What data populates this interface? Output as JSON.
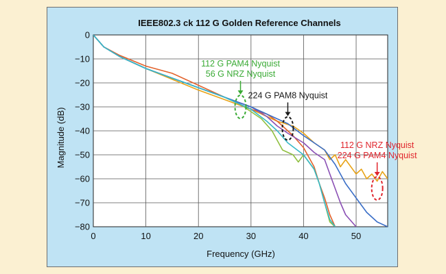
{
  "chart_data": {
    "type": "line",
    "title": "IEEE802.3 ck 112 G Golden Reference Channels",
    "xlabel": "Frequency (GHz)",
    "ylabel": "Magnitude (dB)",
    "xlim": [
      0,
      56
    ],
    "ylim": [
      -80,
      0
    ],
    "x_ticks": [
      "0",
      "10",
      "20",
      "30",
      "40",
      "50"
    ],
    "y_ticks": [
      "0",
      "−10",
      "−20",
      "−30",
      "−40",
      "−50",
      "−60",
      "−70",
      "−80"
    ],
    "grid": true,
    "series": [
      {
        "color": "#e8a317",
        "points": [
          [
            0,
            0
          ],
          [
            2,
            -5
          ],
          [
            5,
            -9
          ],
          [
            10,
            -14
          ],
          [
            15,
            -18.5
          ],
          [
            20,
            -23
          ],
          [
            25,
            -27
          ],
          [
            30,
            -31
          ],
          [
            35,
            -36
          ],
          [
            38,
            -38
          ],
          [
            40,
            -41
          ],
          [
            42,
            -45
          ],
          [
            44,
            -48
          ],
          [
            45,
            -52
          ],
          [
            46,
            -50
          ],
          [
            47,
            -55
          ],
          [
            48,
            -52
          ],
          [
            50,
            -58
          ],
          [
            51,
            -56
          ],
          [
            52,
            -60
          ],
          [
            53,
            -58
          ],
          [
            54,
            -61
          ],
          [
            55,
            -57
          ],
          [
            56,
            -60
          ]
        ]
      },
      {
        "color": "#e2622c",
        "points": [
          [
            0,
            0
          ],
          [
            2,
            -5
          ],
          [
            5,
            -8.5
          ],
          [
            10,
            -13
          ],
          [
            15,
            -16
          ],
          [
            20,
            -21
          ],
          [
            25,
            -26
          ],
          [
            30,
            -31
          ],
          [
            33,
            -33
          ],
          [
            35,
            -36
          ],
          [
            36,
            -38
          ],
          [
            37,
            -40
          ],
          [
            38,
            -42
          ],
          [
            40,
            -47
          ],
          [
            42,
            -55
          ],
          [
            43,
            -62
          ],
          [
            44,
            -68
          ],
          [
            45,
            -75
          ],
          [
            46,
            -80
          ]
        ]
      },
      {
        "color": "#8fbf3f",
        "points": [
          [
            0,
            0
          ],
          [
            2,
            -5
          ],
          [
            5,
            -9
          ],
          [
            10,
            -14
          ],
          [
            15,
            -18
          ],
          [
            20,
            -22
          ],
          [
            25,
            -26
          ],
          [
            28,
            -29
          ],
          [
            30,
            -32
          ],
          [
            32,
            -35
          ],
          [
            34,
            -40
          ],
          [
            35,
            -44
          ],
          [
            36,
            -48
          ],
          [
            38,
            -50
          ],
          [
            39,
            -53
          ],
          [
            40,
            -50
          ],
          [
            41,
            -53
          ],
          [
            42,
            -56
          ],
          [
            43,
            -62
          ],
          [
            44,
            -70
          ],
          [
            45,
            -78
          ],
          [
            46,
            -80
          ]
        ]
      },
      {
        "color": "#8a4fb4",
        "points": [
          [
            0,
            0
          ],
          [
            2,
            -5
          ],
          [
            5,
            -9
          ],
          [
            10,
            -14
          ],
          [
            15,
            -18
          ],
          [
            20,
            -22
          ],
          [
            25,
            -26
          ],
          [
            30,
            -30
          ],
          [
            33,
            -34
          ],
          [
            35,
            -38
          ],
          [
            37,
            -41
          ],
          [
            40,
            -45
          ],
          [
            42,
            -49
          ],
          [
            44,
            -52
          ],
          [
            45,
            -58
          ],
          [
            46,
            -64
          ],
          [
            47,
            -70
          ],
          [
            48,
            -75
          ],
          [
            50,
            -80
          ]
        ]
      },
      {
        "color": "#3a6ec7",
        "points": [
          [
            0,
            0
          ],
          [
            2,
            -5
          ],
          [
            5,
            -9
          ],
          [
            10,
            -14
          ],
          [
            15,
            -18
          ],
          [
            20,
            -22
          ],
          [
            25,
            -26
          ],
          [
            30,
            -30
          ],
          [
            33,
            -33
          ],
          [
            35,
            -35
          ],
          [
            37,
            -37
          ],
          [
            40,
            -42
          ],
          [
            42,
            -45
          ],
          [
            44,
            -48
          ],
          [
            46,
            -54
          ],
          [
            48,
            -62
          ],
          [
            50,
            -68
          ],
          [
            52,
            -74
          ],
          [
            54,
            -78
          ],
          [
            56,
            -80
          ]
        ]
      },
      {
        "color": "#36b8c8",
        "points": [
          [
            0,
            0
          ],
          [
            2,
            -5
          ],
          [
            5,
            -9
          ],
          [
            10,
            -14
          ],
          [
            15,
            -18
          ],
          [
            20,
            -22
          ],
          [
            25,
            -26
          ],
          [
            30,
            -31
          ],
          [
            33,
            -36
          ],
          [
            35,
            -40
          ],
          [
            37,
            -45
          ],
          [
            40,
            -50
          ],
          [
            42,
            -56
          ],
          [
            43,
            -62
          ],
          [
            44,
            -70
          ],
          [
            45,
            -77
          ],
          [
            46,
            -80
          ]
        ]
      }
    ],
    "annotations": [
      {
        "lines": [
          "112 G PAM4 Nyquist",
          "56 G NRZ Nyquist"
        ],
        "color": "#3aaa35",
        "x": 28,
        "y": -30
      },
      {
        "lines": [
          "224 G PAM8 Nyquist"
        ],
        "color": "#1a1a1a",
        "x": 37,
        "y": -39
      },
      {
        "lines": [
          "112 G NRZ Nyquist",
          "224 G PAM4 Nyquist"
        ],
        "color": "#e0242c",
        "x": 54,
        "y": -64
      }
    ]
  }
}
